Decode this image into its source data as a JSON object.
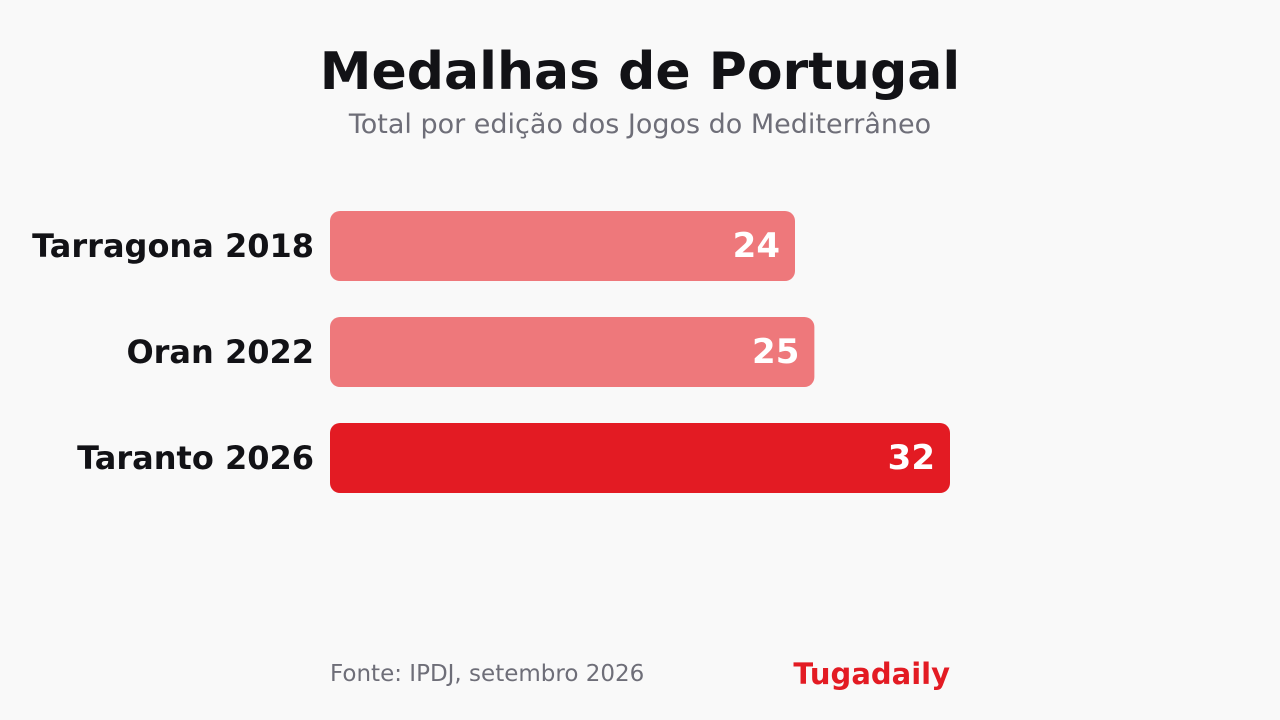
{
  "chart_data": {
    "type": "bar",
    "orientation": "horizontal",
    "title": "Medalhas de Portugal",
    "subtitle": "Total por edição dos Jogos do Mediterrâneo",
    "categories": [
      "Tarragona 2018",
      "Oran 2022",
      "Taranto 2026"
    ],
    "values": [
      24,
      25,
      32
    ],
    "colors": [
      "#ee787b",
      "#ee787b",
      "#e31b23"
    ],
    "xlim": [
      0,
      32
    ],
    "grid": false,
    "legend": "none"
  },
  "footer": {
    "source": "Fonte: IPDJ, setembro 2026",
    "brand": "Tugadaily"
  }
}
